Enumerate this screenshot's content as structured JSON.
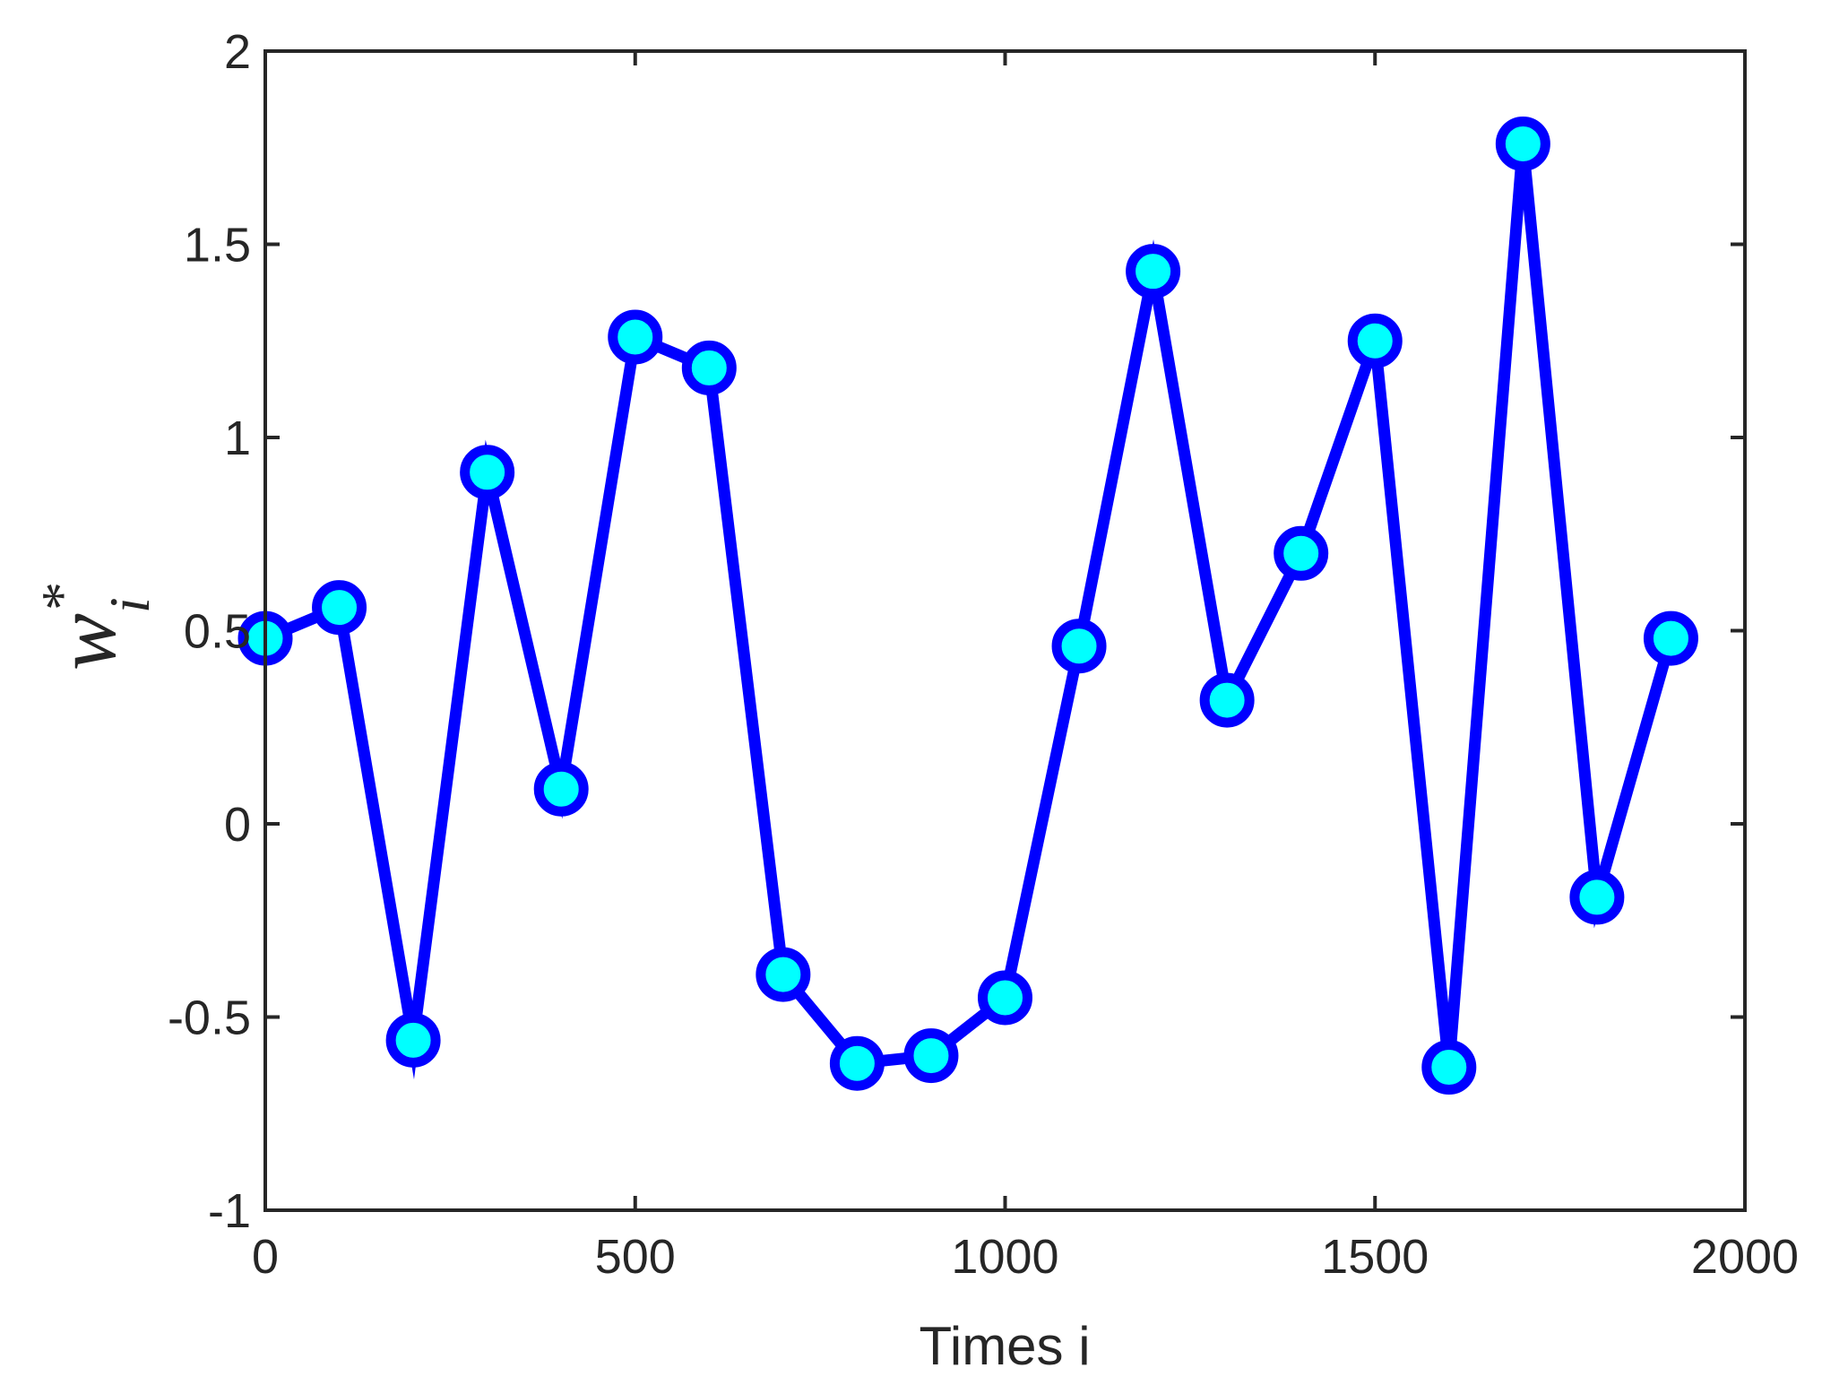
{
  "chart_data": {
    "type": "line",
    "title": "",
    "xlabel": "Times i",
    "ylabel": {
      "base": "w",
      "superscript": "*",
      "subscript": "i"
    },
    "xlim": [
      0,
      2000
    ],
    "ylim": [
      -1,
      2
    ],
    "xticks": [
      0,
      500,
      1000,
      1500,
      2000
    ],
    "yticks": [
      -1,
      -0.5,
      0,
      0.5,
      1,
      1.5,
      2
    ],
    "xtick_labels": [
      "0",
      "500",
      "1000",
      "1500",
      "2000"
    ],
    "ytick_labels": [
      "-1",
      "-0.5",
      "0",
      "0.5",
      "1",
      "1.5",
      "2"
    ],
    "grid": false,
    "series": [
      {
        "line_color": "#0000ff",
        "marker": "circle",
        "marker_face_color": "#00ffff",
        "marker_edge_color": "#0000ff",
        "x": [
          0,
          100,
          200,
          300,
          400,
          500,
          600,
          700,
          800,
          900,
          1000,
          1100,
          1200,
          1300,
          1400,
          1500,
          1600,
          1700,
          1800,
          1900
        ],
        "y": [
          0.48,
          0.56,
          -0.56,
          0.91,
          0.09,
          1.26,
          1.18,
          -0.39,
          -0.62,
          -0.6,
          -0.45,
          0.46,
          1.43,
          0.32,
          0.7,
          1.25,
          -0.63,
          1.76,
          -0.19,
          0.48
        ]
      }
    ]
  }
}
